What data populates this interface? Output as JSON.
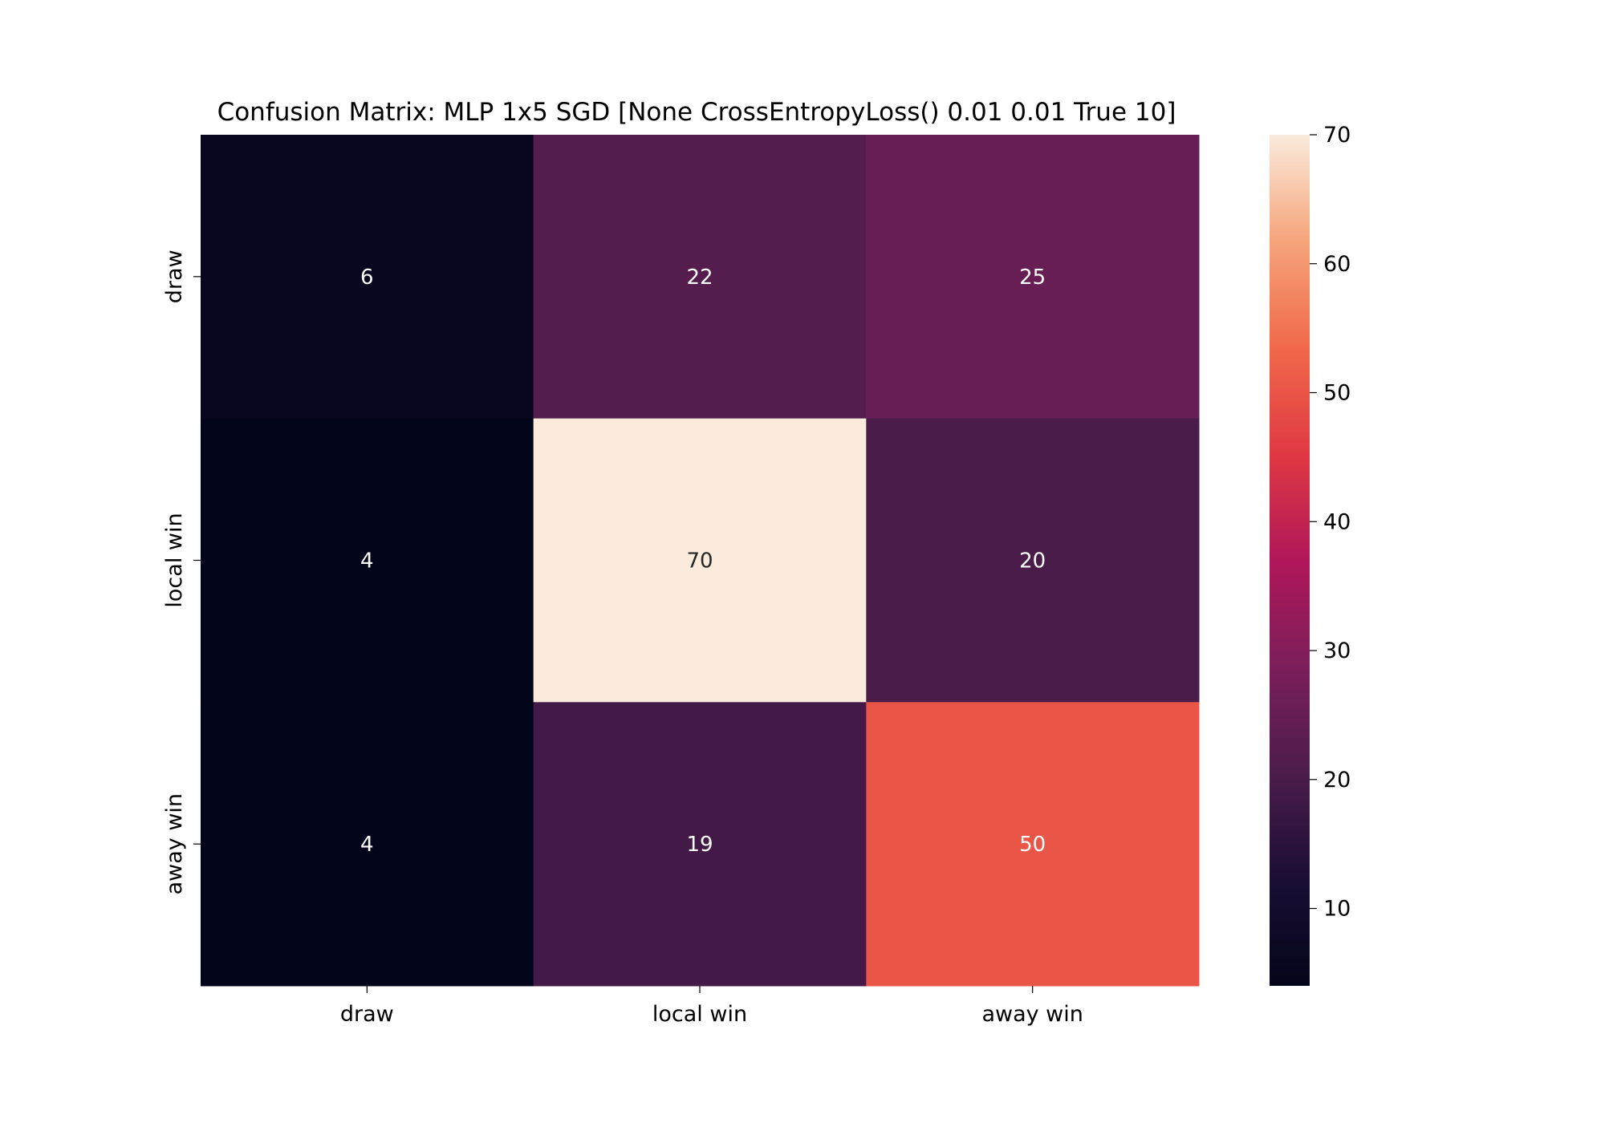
{
  "chart_data": {
    "type": "heatmap",
    "title": "Confusion Matrix: MLP 1x5 SGD [None CrossEntropyLoss() 0.01 0.01 True 10]",
    "xlabel": "",
    "ylabel": "",
    "x_categories": [
      "draw",
      "local win",
      "away win"
    ],
    "y_categories": [
      "draw",
      "local win",
      "away win"
    ],
    "values": [
      [
        6,
        22,
        25
      ],
      [
        4,
        70,
        20
      ],
      [
        4,
        19,
        50
      ]
    ],
    "colorbar": {
      "range": [
        4,
        70
      ],
      "ticks": [
        10,
        20,
        30,
        40,
        50,
        60,
        70
      ]
    },
    "colormap": "rocket",
    "colormap_stops": [
      "#03051a",
      "#1a0e34",
      "#4c1d4b",
      "#7c1e5b",
      "#b01759",
      "#e03943",
      "#f0694a",
      "#f6a47b",
      "#faebdd"
    ],
    "annotation_colors": {
      "light": "#ffffff",
      "dark": "#262626"
    }
  }
}
